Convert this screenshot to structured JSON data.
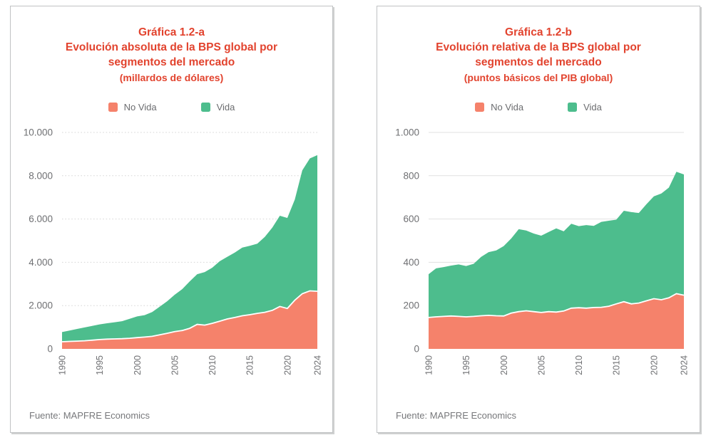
{
  "colors": {
    "no_vida": "#f5826b",
    "vida": "#4dbd8d",
    "title_red": "#e2432e",
    "text_gray": "#6b6c6f",
    "axis_gray": "#6f7073"
  },
  "chart_data": [
    {
      "type": "area",
      "stacked": true,
      "heading": "Gráfica 1.2-a",
      "title": "Evolución absoluta de la BPS global por segmentos del mercado",
      "subtitle": "(millardos de dólares)",
      "source": "Fuente: MAPFRE Economics",
      "x": [
        1990,
        1991,
        1992,
        1993,
        1994,
        1995,
        1996,
        1997,
        1998,
        1999,
        2000,
        2001,
        2002,
        2003,
        2004,
        2005,
        2006,
        2007,
        2008,
        2009,
        2010,
        2011,
        2012,
        2013,
        2014,
        2015,
        2016,
        2017,
        2018,
        2019,
        2020,
        2021,
        2022,
        2023,
        2024
      ],
      "series": [
        {
          "name": "No Vida",
          "color": "#f5826b",
          "values": [
            330,
            345,
            360,
            375,
            400,
            430,
            450,
            460,
            470,
            490,
            520,
            545,
            580,
            650,
            720,
            800,
            850,
            950,
            1130,
            1100,
            1180,
            1280,
            1380,
            1450,
            1530,
            1580,
            1640,
            1690,
            1780,
            1960,
            1870,
            2250,
            2550,
            2680,
            2660
          ]
        },
        {
          "name": "Vida",
          "color": "#4dbd8d",
          "values": [
            445,
            505,
            560,
            615,
            660,
            700,
            735,
            770,
            810,
            900,
            980,
            1015,
            1120,
            1300,
            1480,
            1700,
            1910,
            2170,
            2320,
            2450,
            2570,
            2770,
            2870,
            3000,
            3150,
            3180,
            3220,
            3480,
            3820,
            4190,
            4180,
            4650,
            5700,
            6120,
            6290
          ]
        }
      ],
      "ylim": [
        0,
        10000
      ],
      "ytick_values": [
        0,
        2000,
        4000,
        6000,
        8000,
        10000
      ],
      "ytick_labels": [
        "0",
        "2.000",
        "4.000",
        "6.000",
        "8.000",
        "10.000"
      ],
      "xtick_labels": [
        "1990",
        "1995",
        "2000",
        "2005",
        "2010",
        "2015",
        "2020",
        "2024"
      ],
      "grid_style": "dotted",
      "legend_position": "top"
    },
    {
      "type": "area",
      "stacked": true,
      "heading": "Gráfica 1.2-b",
      "title": "Evolución relativa de la BPS global por segmentos del mercado",
      "subtitle": "(puntos básicos del PIB global)",
      "source": "Fuente: MAPFRE Economics",
      "x": [
        1990,
        1991,
        1992,
        1993,
        1994,
        1995,
        1996,
        1997,
        1998,
        1999,
        2000,
        2001,
        2002,
        2003,
        2004,
        2005,
        2006,
        2007,
        2008,
        2009,
        2010,
        2011,
        2012,
        2013,
        2014,
        2015,
        2016,
        2017,
        2018,
        2019,
        2020,
        2021,
        2022,
        2023,
        2024
      ],
      "series": [
        {
          "name": "No Vida",
          "color": "#f5826b",
          "values": [
            145,
            148,
            150,
            152,
            150,
            148,
            150,
            153,
            155,
            153,
            152,
            165,
            172,
            176,
            172,
            168,
            172,
            170,
            175,
            188,
            190,
            188,
            191,
            192,
            197,
            208,
            218,
            208,
            212,
            222,
            232,
            227,
            236,
            255,
            248
          ]
        },
        {
          "name": "Vida",
          "color": "#4dbd8d",
          "values": [
            200,
            224,
            228,
            233,
            240,
            235,
            243,
            272,
            292,
            302,
            323,
            345,
            381,
            371,
            361,
            355,
            368,
            387,
            368,
            390,
            377,
            384,
            377,
            395,
            395,
            389,
            420,
            424,
            416,
            446,
            473,
            491,
            509,
            563,
            558
          ]
        }
      ],
      "ylim": [
        0,
        1000
      ],
      "ytick_values": [
        0,
        200,
        400,
        600,
        800,
        1000
      ],
      "ytick_labels": [
        "0",
        "200",
        "400",
        "600",
        "800",
        "1.000"
      ],
      "xtick_labels": [
        "1990",
        "1995",
        "2000",
        "2005",
        "2010",
        "2015",
        "2020",
        "2024"
      ],
      "grid_style": "solid",
      "legend_position": "top"
    }
  ]
}
